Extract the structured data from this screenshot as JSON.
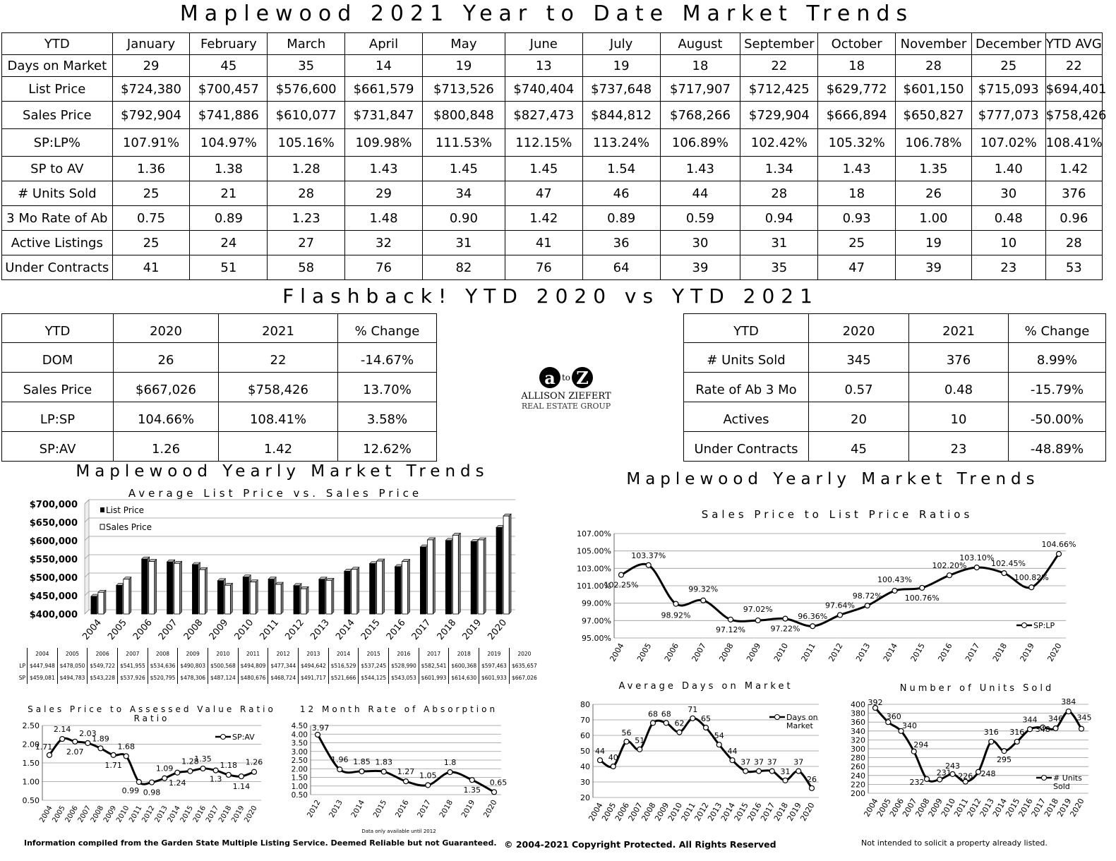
{
  "title": "Maplewood 2021 Year to Date Market Trends",
  "ytd_table": {
    "columns": [
      "YTD",
      "January",
      "February",
      "March",
      "April",
      "May",
      "June",
      "July",
      "August",
      "September",
      "October",
      "November",
      "December",
      "YTD AVG"
    ],
    "rows": [
      [
        "Days on Market",
        "29",
        "45",
        "35",
        "14",
        "19",
        "13",
        "19",
        "18",
        "22",
        "18",
        "28",
        "25",
        "22"
      ],
      [
        "List Price",
        "$724,380",
        "$700,457",
        "$576,600",
        "$661,579",
        "$713,526",
        "$740,404",
        "$737,648",
        "$717,907",
        "$712,425",
        "$629,772",
        "$601,150",
        "$715,093",
        "$694,401"
      ],
      [
        "Sales Price",
        "$792,904",
        "$741,886",
        "$610,077",
        "$731,847",
        "$800,848",
        "$827,473",
        "$844,812",
        "$768,266",
        "$729,904",
        "$666,894",
        "$650,827",
        "$777,073",
        "$758,426"
      ],
      [
        "SP:LP%",
        "107.91%",
        "104.97%",
        "105.16%",
        "109.98%",
        "111.53%",
        "112.15%",
        "113.24%",
        "106.89%",
        "102.42%",
        "105.32%",
        "106.78%",
        "107.02%",
        "108.41%"
      ],
      [
        "SP to AV",
        "1.36",
        "1.38",
        "1.28",
        "1.43",
        "1.45",
        "1.45",
        "1.54",
        "1.43",
        "1.34",
        "1.43",
        "1.35",
        "1.40",
        "1.42"
      ],
      [
        "# Units Sold",
        "25",
        "21",
        "28",
        "29",
        "34",
        "47",
        "46",
        "44",
        "28",
        "18",
        "26",
        "30",
        "376"
      ],
      [
        "3 Mo Rate of Ab",
        "0.75",
        "0.89",
        "1.23",
        "1.48",
        "0.90",
        "1.42",
        "0.89",
        "0.59",
        "0.94",
        "0.93",
        "1.00",
        "0.48",
        "0.96"
      ],
      [
        "Active Listings",
        "25",
        "24",
        "27",
        "32",
        "31",
        "41",
        "36",
        "30",
        "31",
        "25",
        "19",
        "10",
        "28"
      ],
      [
        "Under Contracts",
        "41",
        "51",
        "58",
        "76",
        "82",
        "76",
        "64",
        "39",
        "35",
        "47",
        "39",
        "23",
        "53"
      ]
    ]
  },
  "flashback_title": "Flashback!  YTD 2020 vs YTD 2021",
  "flashback_left": {
    "columns": [
      "YTD",
      "2020",
      "2021",
      "% Change"
    ],
    "rows": [
      [
        "DOM",
        "26",
        "22",
        "-14.67%"
      ],
      [
        "Sales Price",
        "$667,026",
        "$758,426",
        "13.70%"
      ],
      [
        "LP:SP",
        "104.66%",
        "108.41%",
        "3.58%"
      ],
      [
        "SP:AV",
        "1.26",
        "1.42",
        "12.62%"
      ]
    ]
  },
  "flashback_right": {
    "columns": [
      "YTD",
      "2020",
      "2021",
      "% Change"
    ],
    "rows": [
      [
        "# Units Sold",
        "345",
        "376",
        "8.99%"
      ],
      [
        "Rate of Ab 3 Mo",
        "0.57",
        "0.48",
        "-15.79%"
      ],
      [
        "Actives",
        "20",
        "10",
        "-50.00%"
      ],
      [
        "Under Contracts",
        "45",
        "23",
        "-48.89%"
      ]
    ]
  },
  "logo": {
    "mark_a": "a",
    "mark_to": "to",
    "mark_z": "Z",
    "line1": "ALLISON ZIEFERT",
    "line2": "REAL ESTATE GROUP"
  },
  "yearly_title_left": "Maplewood Yearly Market Trends",
  "yearly_title_right": "Maplewood Yearly Market Trends",
  "colors": {
    "list_bar": "#000000",
    "sales_bar": "#ffffff",
    "line": "#000000"
  },
  "chart_data": [
    {
      "id": "lp_vs_sp",
      "type": "bar",
      "title": "Average List Price vs. Sales Price",
      "categories": [
        "2004",
        "2005",
        "2006",
        "2007",
        "2008",
        "2009",
        "2010",
        "2011",
        "2012",
        "2013",
        "2014",
        "2015",
        "2016",
        "2017",
        "2018",
        "2019",
        "2020"
      ],
      "series": [
        {
          "name": "List Price",
          "values": [
            447948,
            478050,
            549722,
            541955,
            534636,
            490803,
            500568,
            494809,
            477344,
            494642,
            516529,
            537245,
            528990,
            582541,
            600368,
            597463,
            635657
          ]
        },
        {
          "name": "Sales Price",
          "values": [
            459081,
            494783,
            543228,
            537926,
            520795,
            478306,
            487124,
            480676,
            468724,
            491717,
            521666,
            544125,
            543053,
            601993,
            614630,
            601933,
            667026
          ]
        }
      ],
      "ylim": [
        400000,
        700000
      ],
      "yticks": [
        "$400,000",
        "$450,000",
        "$500,000",
        "$550,000",
        "$600,000",
        "$650,000",
        "$700,000"
      ],
      "legend": "top-left",
      "table": {
        "years": [
          "2004",
          "2005",
          "2006",
          "2007",
          "2008",
          "2009",
          "2010",
          "2011",
          "2012",
          "2013",
          "2014",
          "2015",
          "2016",
          "2017",
          "2018",
          "2019",
          "2020"
        ],
        "lp_label": "LP",
        "sp_label": "SP",
        "lp": [
          "$447,948",
          "$478,050",
          "$549,722",
          "$541,955",
          "$534,636",
          "$490,803",
          "$500,568",
          "$494,809",
          "$477,344",
          "$494,642",
          "$516,529",
          "$537,245",
          "$528,990",
          "$582,541",
          "$600,368",
          "$597,463",
          "$635,657"
        ],
        "sp": [
          "$459,081",
          "$494,783",
          "$543,228",
          "$537,926",
          "$520,795",
          "$478,306",
          "$487,124",
          "$480,676",
          "$468,724",
          "$491,717",
          "$521,666",
          "$544,125",
          "$543,053",
          "$601,993",
          "$614,630",
          "$601,933",
          "$667,026"
        ]
      }
    },
    {
      "id": "sp_lp_ratio",
      "type": "line",
      "title": "Sales Price to List Price Ratios",
      "categories": [
        "2004",
        "2005",
        "2006",
        "2007",
        "2008",
        "2009",
        "2010",
        "2011",
        "2012",
        "2013",
        "2014",
        "2015",
        "2016",
        "2017",
        "2018",
        "2019",
        "2020"
      ],
      "series": [
        {
          "name": "SP:LP",
          "values": [
            102.25,
            103.37,
            98.92,
            99.32,
            97.12,
            97.02,
            97.22,
            96.36,
            97.64,
            98.72,
            100.43,
            100.76,
            102.2,
            103.1,
            102.45,
            100.82,
            104.66
          ]
        }
      ],
      "data_labels": [
        "102.25%",
        "103.37%",
        "98.92%",
        "99.32%",
        "97.12%",
        "97.02%",
        "97.22%",
        "96.36%",
        "97.64%",
        "98.72%",
        "100.43%",
        "100.76%",
        "102.20%",
        "103.10%",
        "102.45%",
        "100.82%",
        "104.66%"
      ],
      "ylim": [
        95,
        107
      ],
      "yticks": [
        "95.00%",
        "97.00%",
        "99.00%",
        "101.00%",
        "103.00%",
        "105.00%",
        "107.00%"
      ],
      "legend": "bottom-right"
    },
    {
      "id": "days_on_market",
      "type": "line",
      "title": "Average Days on Market",
      "categories": [
        "2004",
        "2005",
        "2006",
        "2007",
        "2008",
        "2009",
        "2010",
        "2011",
        "2012",
        "2013",
        "2014",
        "2015",
        "2016",
        "2017",
        "2018",
        "2019",
        "2020"
      ],
      "series": [
        {
          "name": "Days on Market",
          "values": [
            44,
            40,
            56,
            51,
            68,
            68,
            62,
            71,
            65,
            54,
            44,
            37,
            37,
            37,
            31,
            37,
            26
          ]
        }
      ],
      "ylim": [
        20,
        80
      ],
      "yticks": [
        "20",
        "30",
        "40",
        "50",
        "60",
        "70",
        "80"
      ],
      "legend": "top-right"
    },
    {
      "id": "units_sold",
      "type": "line",
      "title": "Number of Units Sold",
      "categories": [
        "2004",
        "2005",
        "2006",
        "2007",
        "2008",
        "2009",
        "2010",
        "2011",
        "2012",
        "2013",
        "2014",
        "2015",
        "2016",
        "2017",
        "2018",
        "2019",
        "2020"
      ],
      "series": [
        {
          "name": "# Units Sold",
          "values": [
            392,
            360,
            340,
            294,
            232,
            231,
            243,
            226,
            248,
            316,
            295,
            316,
            344,
            348,
            346,
            384,
            345
          ]
        }
      ],
      "ylim": [
        200,
        400
      ],
      "yticks": [
        "200",
        "220",
        "240",
        "260",
        "280",
        "300",
        "320",
        "340",
        "360",
        "380",
        "400"
      ],
      "legend": "bottom-right"
    },
    {
      "id": "sp_av_ratio",
      "type": "line",
      "title": "Sales Price to Assessed Value Ratio",
      "categories": [
        "2004",
        "2005",
        "2006",
        "2007",
        "2008",
        "2009",
        "2010",
        "2011",
        "2012",
        "2013",
        "2014",
        "2015",
        "2016",
        "2017",
        "2018",
        "2019",
        "2020"
      ],
      "series": [
        {
          "name": "SP:AV",
          "values": [
            1.71,
            2.14,
            2.07,
            2.03,
            1.89,
            1.71,
            1.68,
            0.99,
            0.98,
            1.09,
            1.24,
            1.28,
            1.35,
            1.3,
            1.18,
            1.14,
            1.26
          ]
        }
      ],
      "ylim": [
        0.5,
        2.5
      ],
      "yticks": [
        "0.50",
        "1.00",
        "1.50",
        "2.00",
        "2.50"
      ],
      "legend": "top-right"
    },
    {
      "id": "absorption",
      "type": "line",
      "title": "12 Month Rate of Absorption",
      "categories": [
        "2012",
        "2013",
        "2014",
        "2015",
        "2016",
        "2017",
        "2018",
        "2019",
        "2020"
      ],
      "series": [
        {
          "name": "Rate of Absorption",
          "values": [
            3.97,
            1.96,
            1.85,
            1.83,
            1.27,
            1.05,
            1.8,
            1.35,
            0.65
          ]
        }
      ],
      "ylim": [
        0.5,
        4.5
      ],
      "yticks": [
        "0.50",
        "1.00",
        "1.50",
        "2.00",
        "2.50",
        "3.00",
        "3.50",
        "4.00",
        "4.50"
      ],
      "note": "Data only available until 2012"
    }
  ],
  "footer": {
    "left": "Information compiled from the Garden State Multiple Listing Service.  Deemed Reliable but not Guaranteed.",
    "center": "© 2004-2021 Copyright Protected.  All Rights Reserved",
    "right": "Not intended to solicit a property already listed."
  }
}
